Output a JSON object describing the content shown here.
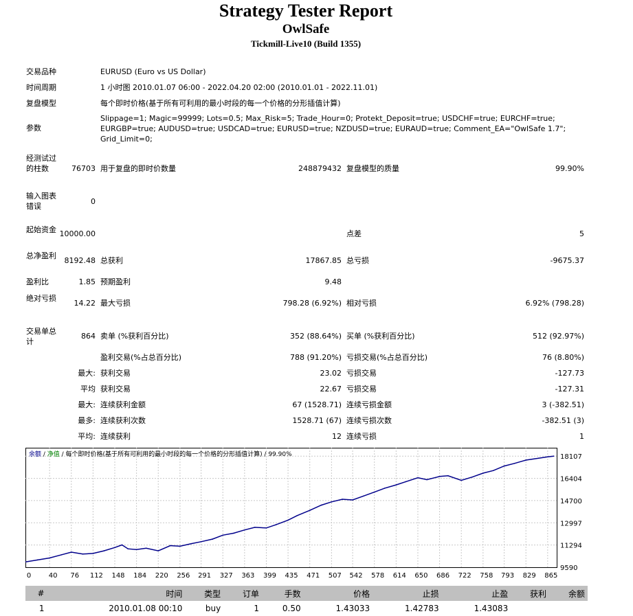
{
  "header": {
    "title": "Strategy Tester Report",
    "expert": "OwlSafe",
    "server": "Tickmill-Live10 (Build 1355)"
  },
  "settings": {
    "symbol_label": "交易品种",
    "symbol_value": "EURUSD (Euro vs US Dollar)",
    "period_label": "时间周期",
    "period_value": "1 小时图 2010.01.07 06:00 - 2022.04.20 02:00 (2010.01.01 - 2022.11.01)",
    "model_label": "复盘模型",
    "model_value": "每个即时价格(基于所有可利用的最小时段的每一个价格的分形插值计算)",
    "params_label": "参数",
    "params_value": "Slippage=1; Magic=99999; Lots=0.5; Max_Risk=5; Trade_Hour=0; Protekt_Deposit=true; USDCHF=true; EURCHF=true; EURGBP=true; AUDUSD=true; USDCAD=true; EURUSD=true; NZDUSD=true; EURAUD=true; Comment_EA=\"OwlSafe 1.7\"; Grid_Limit=0;"
  },
  "stats": {
    "bars_label": "经测试过的柱数",
    "bars_value": "76703",
    "ticks_label": "用于复盘的即时价数量",
    "ticks_value": "248879432",
    "quality_label": "复盘模型的质量",
    "quality_value": "99.90%",
    "mismatch_label": "输入图表错误",
    "mismatch_value": "0",
    "deposit_label": "起始资金",
    "deposit_value": "10000.00",
    "spread_label": "点差",
    "spread_value": "5",
    "net_label": "总净盈利",
    "net_value": "8192.48",
    "gross_profit_label": "总获利",
    "gross_profit_value": "17867.85",
    "gross_loss_label": "总亏损",
    "gross_loss_value": "-9675.37",
    "pf_label": "盈利比",
    "pf_value": "1.85",
    "payoff_label": "预期盈利",
    "payoff_value": "9.48",
    "abs_dd_label": "绝对亏损",
    "abs_dd_value": "14.22",
    "max_dd_label": "最大亏损",
    "max_dd_value": "798.28 (6.92%)",
    "rel_dd_label": "相对亏损",
    "rel_dd_value": "6.92% (798.28)",
    "trades_label": "交易单总计",
    "trades_value": "864",
    "short_label": "卖单 (%获利百分比)",
    "short_value": "352 (88.64%)",
    "long_label": "买单 (%获利百分比)",
    "long_value": "512 (92.97%)",
    "profit_trades_label": "盈利交易(%占总百分比)",
    "profit_trades_value": "788 (91.20%)",
    "loss_trades_label": "亏损交易(%占总百分比)",
    "loss_trades_value": "76 (8.80%)",
    "largest_prefix": "最大:",
    "largest_profit_label": "获利交易",
    "largest_profit_value": "23.02",
    "largest_loss_label": "亏损交易",
    "largest_loss_value": "-127.73",
    "average_prefix": "平均",
    "avg_profit_label": "获利交易",
    "avg_profit_value": "22.67",
    "avg_loss_label": "亏损交易",
    "avg_loss_value": "-127.31",
    "max_prefix": "最大:",
    "max_cons_wins_label": "连续获利金额",
    "max_cons_wins_value": "67 (1528.71)",
    "max_cons_losses_label": "连续亏损金额",
    "max_cons_losses_value": "3 (-382.51)",
    "maximal_prefix": "最多:",
    "maximal_cons_profit_label": "连续获利次数",
    "maximal_cons_profit_value": "1528.71 (67)",
    "maximal_cons_loss_label": "连续亏损次数",
    "maximal_cons_loss_value": "-382.51 (3)",
    "avg_cons_prefix": "平均:",
    "avg_cons_wins_label": "连续获利",
    "avg_cons_wins_value": "12",
    "avg_cons_losses_label": "连续亏损",
    "avg_cons_losses_value": "1"
  },
  "chart_caption": {
    "balance": "余额",
    "sep1": " / ",
    "equity": "净值",
    "rest": " / 每个即时价格(基于所有可利用的最小时段的每一个价格的分形插值计算) / 99.90%"
  },
  "chart_data": {
    "type": "line",
    "title": "余额 / 净值 / 每个即时价格(基于所有可利用的最小时段的每一个价格的分形插值计算) / 99.90%",
    "xlabel": "",
    "ylabel": "",
    "x_ticks": [
      "0",
      "40",
      "76",
      "112",
      "148",
      "184",
      "220",
      "256",
      "291",
      "327",
      "363",
      "399",
      "435",
      "471",
      "507",
      "542",
      "578",
      "614",
      "650",
      "686",
      "722",
      "758",
      "793",
      "829",
      "865"
    ],
    "y_ticks": [
      "18107",
      "16404",
      "14700",
      "12997",
      "11294",
      "9590"
    ],
    "xlim": [
      0,
      880
    ],
    "ylim": [
      9590,
      18750
    ],
    "grid": true,
    "colors": {
      "balance": "#00008b",
      "equity": "#008000"
    },
    "series": [
      {
        "name": "余额",
        "x": [
          0,
          20,
          40,
          60,
          76,
          95,
          112,
          130,
          148,
          160,
          170,
          184,
          200,
          220,
          240,
          256,
          275,
          291,
          310,
          327,
          345,
          363,
          380,
          399,
          415,
          435,
          450,
          471,
          490,
          507,
          525,
          542,
          560,
          578,
          595,
          614,
          630,
          650,
          665,
          686,
          700,
          722,
          740,
          758,
          775,
          793,
          810,
          829,
          850,
          865,
          875
        ],
        "y": [
          10000,
          10150,
          10300,
          10550,
          10750,
          10600,
          10650,
          10850,
          11100,
          11300,
          11000,
          10950,
          11050,
          10850,
          11250,
          11200,
          11400,
          11550,
          11750,
          12050,
          12200,
          12450,
          12650,
          12600,
          12850,
          13200,
          13550,
          13950,
          14350,
          14600,
          14800,
          14750,
          15050,
          15350,
          15650,
          15900,
          16150,
          16450,
          16300,
          16550,
          16600,
          16250,
          16500,
          16800,
          17000,
          17350,
          17550,
          17800,
          17950,
          18050,
          18107
        ]
      }
    ]
  },
  "deals": {
    "headers": [
      "#",
      "时间",
      "类型",
      "订单",
      "手数",
      "价格",
      "止损",
      "止盈",
      "获利",
      "余额"
    ],
    "rows": [
      [
        "1",
        "2010.01.08 00:10",
        "buy",
        "1",
        "0.50",
        "1.43033",
        "1.42783",
        "1.43083",
        "",
        ""
      ]
    ]
  }
}
